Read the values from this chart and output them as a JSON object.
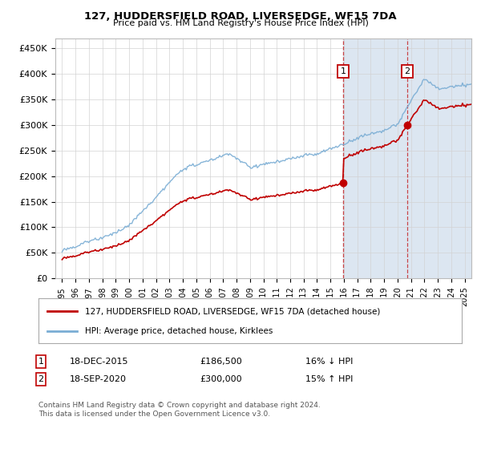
{
  "title": "127, HUDDERSFIELD ROAD, LIVERSEDGE, WF15 7DA",
  "subtitle": "Price paid vs. HM Land Registry's House Price Index (HPI)",
  "ylabel_ticks": [
    "£0",
    "£50K",
    "£100K",
    "£150K",
    "£200K",
    "£250K",
    "£300K",
    "£350K",
    "£400K",
    "£450K"
  ],
  "ytick_values": [
    0,
    50000,
    100000,
    150000,
    200000,
    250000,
    300000,
    350000,
    400000,
    450000
  ],
  "xlim": [
    1994.5,
    2025.5
  ],
  "ylim": [
    0,
    470000
  ],
  "hpi_color": "#7aadd4",
  "price_color": "#c00000",
  "annotation1_date": "18-DEC-2015",
  "annotation1_price": 186500,
  "annotation1_text": "16% ↓ HPI",
  "annotation1_year": 2015.96,
  "annotation2_date": "18-SEP-2020",
  "annotation2_price": 300000,
  "annotation2_text": "15% ↑ HPI",
  "annotation2_year": 2020.71,
  "legend_line1": "127, HUDDERSFIELD ROAD, LIVERSEDGE, WF15 7DA (detached house)",
  "legend_line2": "HPI: Average price, detached house, Kirklees",
  "footnote": "Contains HM Land Registry data © Crown copyright and database right 2024.\nThis data is licensed under the Open Government Licence v3.0.",
  "background_color": "#ffffff",
  "shade_color": "#dce6f1",
  "grid_color": "#d3d3d3"
}
